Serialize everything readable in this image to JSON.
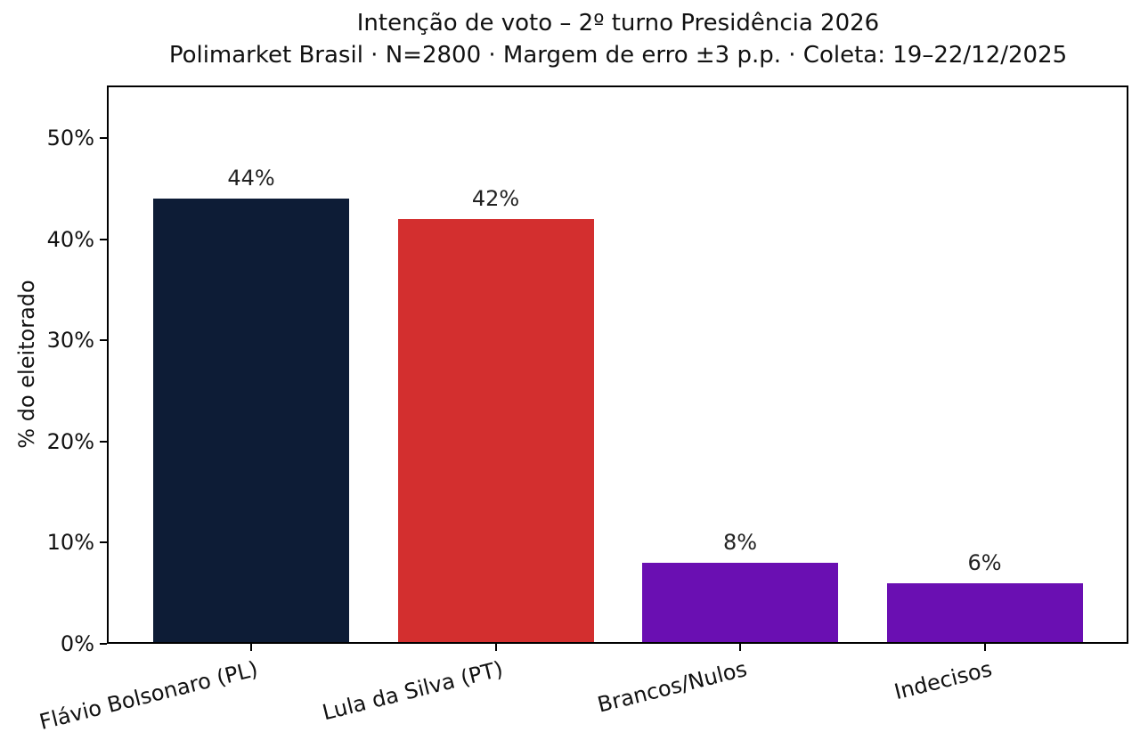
{
  "chart_data": {
    "type": "bar",
    "title": "Intenção de voto – 2º turno Presidência 2026",
    "subtitle": "Polimarket Brasil · N=2800 · Margem de erro ±3 p.p. · Coleta: 19–22/12/2025",
    "categories": [
      "Flávio Bolsonaro (PL)",
      "Lula da Silva (PT)",
      "Brancos/Nulos",
      "Indecisos"
    ],
    "values": [
      44,
      42,
      8,
      6
    ],
    "value_labels": [
      "44%",
      "42%",
      "8%",
      "6%"
    ],
    "bar_colors": [
      "#0d1c36",
      "#d32f2f",
      "#6a0fb2",
      "#6a0fb2"
    ],
    "ylabel": "% do eleitorado",
    "xlabel": "",
    "yticks": [
      0,
      10,
      20,
      30,
      40,
      50
    ],
    "ytick_labels": [
      "0%",
      "10%",
      "20%",
      "30%",
      "40%",
      "50%"
    ],
    "ylim": [
      0,
      55.2
    ],
    "xtick_rotation_deg": 14,
    "grid": false,
    "legend_position": "none",
    "colors": {
      "axis": "#000000",
      "text": "#111111",
      "background": "#ffffff"
    }
  }
}
